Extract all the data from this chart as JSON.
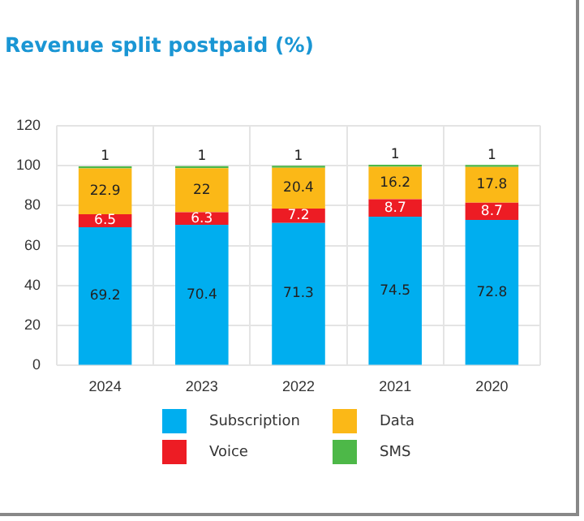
{
  "chart_data": {
    "type": "bar",
    "title": "Revenue split postpaid (%)",
    "stacked": true,
    "categories": [
      "2024",
      "2023",
      "2022",
      "2021",
      "2020"
    ],
    "series": [
      {
        "name": "Subscription",
        "color": "#00aeef",
        "values": [
          69.2,
          70.4,
          71.3,
          74.5,
          72.8
        ]
      },
      {
        "name": "Voice",
        "color": "#ed1c24",
        "values": [
          6.5,
          6.3,
          7.2,
          8.7,
          8.7
        ]
      },
      {
        "name": "Data",
        "color": "#fbb817",
        "values": [
          22.9,
          22,
          20.4,
          16.2,
          17.8
        ]
      },
      {
        "name": "SMS",
        "color": "#4db848",
        "values": [
          1,
          1,
          1,
          1,
          1
        ]
      }
    ],
    "ylim": [
      0,
      120
    ],
    "yticks": [
      0,
      20,
      40,
      60,
      80,
      100,
      120
    ],
    "grid": true,
    "legend": "bottom",
    "data_labels": true
  }
}
